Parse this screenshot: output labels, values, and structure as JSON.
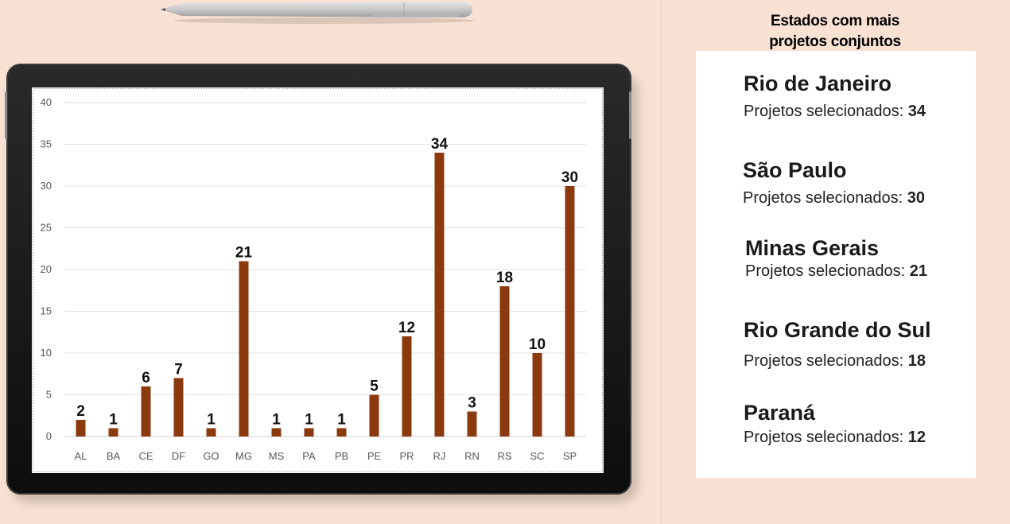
{
  "chart_data": {
    "type": "bar",
    "categories": [
      "AL",
      "BA",
      "CE",
      "DF",
      "GO",
      "MG",
      "MS",
      "PA",
      "PB",
      "PE",
      "PR",
      "RJ",
      "RN",
      "RS",
      "SC",
      "SP"
    ],
    "values": [
      2,
      1,
      6,
      7,
      1,
      21,
      1,
      1,
      1,
      5,
      12,
      34,
      3,
      18,
      10,
      30
    ],
    "ylim": [
      0,
      40
    ],
    "yticks": [
      0,
      5,
      10,
      15,
      20,
      25,
      30,
      35,
      40
    ],
    "grid": true,
    "bar_color": "#8b3a0e",
    "data_labels": true
  },
  "panel": {
    "title_line1": "Estados com mais",
    "title_line2": "projetos conjuntos",
    "items": [
      {
        "name": "Rio de Janeiro",
        "label": "Projetos selecionados:",
        "value": "34"
      },
      {
        "name": "São Paulo",
        "label": "Projetos selecionados:",
        "value": "30"
      },
      {
        "name": "Minas Gerais",
        "label": "Projetos selecionados:",
        "value": "21"
      },
      {
        "name": "Rio Grande do Sul",
        "label": "Projetos selecionados:",
        "value": "18"
      },
      {
        "name": "Paraná",
        "label": "Projetos selecionados:",
        "value": "12"
      }
    ]
  },
  "colors": {
    "background": "#f9e2d3",
    "bar": "#8b3a0e",
    "card": "#ffffff"
  }
}
